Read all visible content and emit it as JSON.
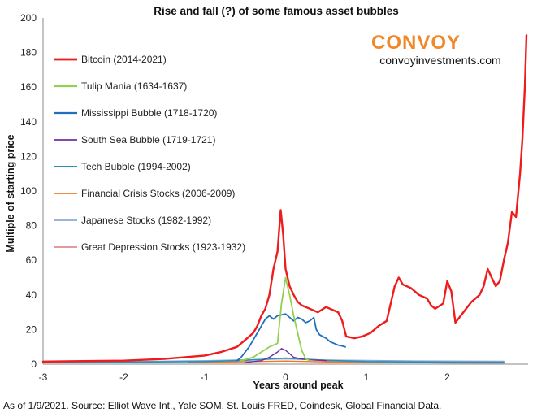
{
  "colors": {
    "brand": "#f0882a",
    "axis": "#888888",
    "bitcoin": "#ee1c1c",
    "tulip": "#92d050",
    "mississippi": "#1f6fbf",
    "southsea": "#7030a0",
    "tech": "#2e8fb5",
    "financial": "#f07820",
    "japanese": "#8da8d8",
    "depression": "#e08c8c"
  },
  "brand": {
    "name": "CONVOY",
    "url": "convoyinvestments.com"
  },
  "footer": {
    "source": "As of 1/9/2021. Source: Elliot Wave Int., Yale SOM, St. Louis FRED, Coindesk, Global Financial Data."
  },
  "chart_data": {
    "type": "line",
    "title": "Rise and fall (?) of some famous asset bubbles",
    "xlabel": "Years around peak",
    "ylabel": "Multiple of starting price",
    "xlim": [
      -3,
      3
    ],
    "ylim": [
      0,
      200
    ],
    "xticks": [
      -3,
      -2,
      -1,
      0,
      1,
      2
    ],
    "yticks": [
      0,
      20,
      40,
      60,
      80,
      100,
      120,
      140,
      160,
      180,
      200
    ],
    "grid": false,
    "legend": "top-left",
    "series": [
      {
        "name": "Bitcoin (2014-2021)",
        "color": "#ee1c1c",
        "width": 2.4,
        "points": [
          [
            -3.0,
            1.5
          ],
          [
            -2.5,
            1.8
          ],
          [
            -2.0,
            2.0
          ],
          [
            -1.5,
            3.0
          ],
          [
            -1.0,
            5.0
          ],
          [
            -0.8,
            7
          ],
          [
            -0.6,
            10
          ],
          [
            -0.5,
            14
          ],
          [
            -0.4,
            18
          ],
          [
            -0.35,
            22
          ],
          [
            -0.3,
            28
          ],
          [
            -0.25,
            32
          ],
          [
            -0.2,
            40
          ],
          [
            -0.15,
            55
          ],
          [
            -0.1,
            65
          ],
          [
            -0.06,
            89
          ],
          [
            -0.03,
            75
          ],
          [
            0.0,
            55
          ],
          [
            0.05,
            45
          ],
          [
            0.1,
            40
          ],
          [
            0.15,
            36
          ],
          [
            0.2,
            34
          ],
          [
            0.3,
            32
          ],
          [
            0.4,
            30
          ],
          [
            0.5,
            33
          ],
          [
            0.6,
            31
          ],
          [
            0.65,
            30
          ],
          [
            0.7,
            25
          ],
          [
            0.75,
            16
          ],
          [
            0.85,
            15
          ],
          [
            0.95,
            16
          ],
          [
            1.05,
            18
          ],
          [
            1.15,
            22
          ],
          [
            1.25,
            25
          ],
          [
            1.3,
            35
          ],
          [
            1.35,
            45
          ],
          [
            1.4,
            50
          ],
          [
            1.45,
            46
          ],
          [
            1.55,
            44
          ],
          [
            1.65,
            40
          ],
          [
            1.75,
            38
          ],
          [
            1.8,
            34
          ],
          [
            1.85,
            32
          ],
          [
            1.95,
            35
          ],
          [
            2.0,
            48
          ],
          [
            2.05,
            42
          ],
          [
            2.1,
            24
          ],
          [
            2.2,
            30
          ],
          [
            2.3,
            36
          ],
          [
            2.4,
            40
          ],
          [
            2.45,
            45
          ],
          [
            2.5,
            55
          ],
          [
            2.55,
            50
          ],
          [
            2.6,
            45
          ],
          [
            2.65,
            48
          ],
          [
            2.7,
            60
          ],
          [
            2.75,
            70
          ],
          [
            2.8,
            88
          ],
          [
            2.85,
            85
          ],
          [
            2.9,
            110
          ],
          [
            2.93,
            130
          ],
          [
            2.96,
            160
          ],
          [
            2.98,
            190
          ]
        ]
      },
      {
        "name": "Tulip Mania (1634-1637)",
        "color": "#92d050",
        "width": 1.8,
        "points": [
          [
            -0.55,
            2
          ],
          [
            -0.4,
            4
          ],
          [
            -0.3,
            7
          ],
          [
            -0.2,
            10
          ],
          [
            -0.1,
            12
          ],
          [
            -0.05,
            35
          ],
          [
            0.0,
            50
          ],
          [
            0.05,
            40
          ],
          [
            0.1,
            28
          ],
          [
            0.15,
            18
          ],
          [
            0.2,
            8
          ],
          [
            0.25,
            3
          ],
          [
            0.3,
            2
          ]
        ]
      },
      {
        "name": "Mississippi Bubble (1718-1720)",
        "color": "#1f6fbf",
        "width": 1.8,
        "points": [
          [
            -0.6,
            2
          ],
          [
            -0.55,
            4
          ],
          [
            -0.5,
            7
          ],
          [
            -0.45,
            10
          ],
          [
            -0.4,
            14
          ],
          [
            -0.35,
            18
          ],
          [
            -0.3,
            22
          ],
          [
            -0.25,
            26
          ],
          [
            -0.2,
            28
          ],
          [
            -0.15,
            26
          ],
          [
            -0.1,
            28
          ],
          [
            0.0,
            29
          ],
          [
            0.05,
            27
          ],
          [
            0.1,
            25
          ],
          [
            0.15,
            27
          ],
          [
            0.2,
            26
          ],
          [
            0.25,
            24
          ],
          [
            0.3,
            25
          ],
          [
            0.35,
            27
          ],
          [
            0.38,
            20
          ],
          [
            0.42,
            17
          ],
          [
            0.5,
            15
          ],
          [
            0.55,
            13
          ],
          [
            0.6,
            12
          ],
          [
            0.65,
            11
          ],
          [
            0.7,
            10.5
          ],
          [
            0.74,
            10
          ]
        ]
      },
      {
        "name": "South Sea Bubble (1719-1721)",
        "color": "#7030a0",
        "width": 1.4,
        "points": [
          [
            -0.5,
            1
          ],
          [
            -0.3,
            2
          ],
          [
            -0.2,
            4
          ],
          [
            -0.1,
            7
          ],
          [
            -0.05,
            9
          ],
          [
            0.0,
            8
          ],
          [
            0.05,
            6
          ],
          [
            0.1,
            4
          ],
          [
            0.2,
            3
          ],
          [
            0.3,
            2.5
          ],
          [
            0.5,
            2
          ]
        ]
      },
      {
        "name": "Tech Bubble (1994-2002)",
        "color": "#2e8fb5",
        "width": 1.6,
        "points": [
          [
            -3.0,
            1
          ],
          [
            -2.0,
            1.2
          ],
          [
            -1.0,
            1.5
          ],
          [
            -0.5,
            2.2
          ],
          [
            0.0,
            3.5
          ],
          [
            0.5,
            2.2
          ],
          [
            1.0,
            1.5
          ],
          [
            1.5,
            1.3
          ],
          [
            2.0,
            1.2
          ],
          [
            2.7,
            1.1
          ]
        ]
      },
      {
        "name": "Financial Crisis Stocks (2006-2009)",
        "color": "#f07820",
        "width": 1.4,
        "points": [
          [
            -1.2,
            1
          ],
          [
            -0.6,
            1.3
          ],
          [
            0.0,
            1.8
          ],
          [
            0.4,
            1.4
          ],
          [
            0.8,
            1.1
          ],
          [
            1.2,
            1.0
          ]
        ]
      },
      {
        "name": "Japanese Stocks (1982-1992)",
        "color": "#8da8d8",
        "width": 1.4,
        "points": [
          [
            -3.0,
            1
          ],
          [
            -2.0,
            1.4
          ],
          [
            -1.0,
            2.0
          ],
          [
            0.0,
            3.0
          ],
          [
            0.5,
            2.4
          ],
          [
            1.0,
            2.1
          ],
          [
            1.5,
            1.9
          ],
          [
            2.0,
            1.8
          ],
          [
            2.7,
            1.7
          ]
        ]
      },
      {
        "name": "Great Depression Stocks (1923-1932)",
        "color": "#e08c8c",
        "width": 1.4,
        "points": [
          [
            -3.0,
            1
          ],
          [
            -2.0,
            1.3
          ],
          [
            -1.0,
            1.8
          ],
          [
            -0.5,
            2.4
          ],
          [
            0.0,
            3.2
          ],
          [
            0.5,
            2.0
          ],
          [
            1.0,
            1.2
          ],
          [
            1.5,
            0.9
          ],
          [
            2.0,
            0.7
          ],
          [
            2.7,
            0.6
          ]
        ]
      }
    ]
  }
}
